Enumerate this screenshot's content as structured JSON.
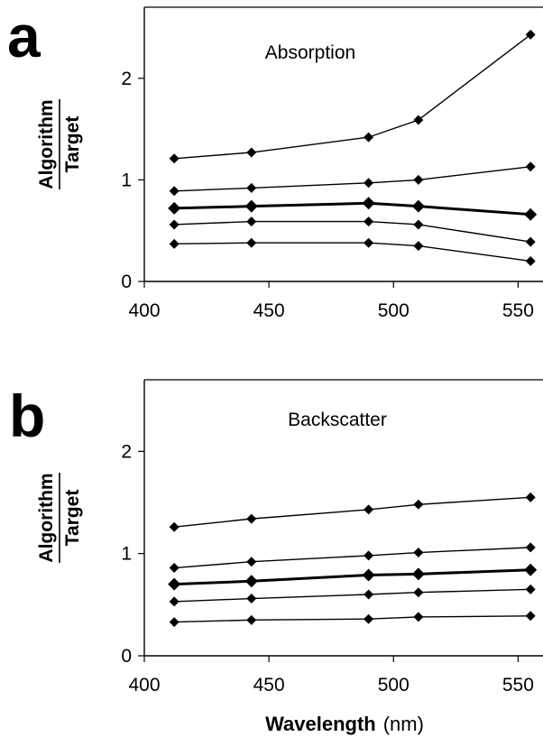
{
  "chart_data": [
    {
      "type": "line",
      "panel_label": "a",
      "annotation": "Absorption",
      "ylabel_numerator": "Algorithm",
      "ylabel_denominator": "Target",
      "xlabel": "",
      "xlabel_unit": "",
      "x": [
        412,
        443,
        490,
        510,
        555
      ],
      "xlim": [
        400,
        560
      ],
      "ylim": [
        0,
        2.7
      ],
      "xticks": [
        400,
        450,
        500,
        550
      ],
      "yticks": [
        0,
        1,
        2
      ],
      "grid": false,
      "legend": "none",
      "series": [
        {
          "values": [
            1.21,
            1.27,
            1.42,
            1.59,
            2.43
          ]
        },
        {
          "values": [
            0.89,
            0.92,
            0.97,
            1.0,
            1.13
          ]
        },
        {
          "values": [
            0.72,
            0.74,
            0.77,
            0.74,
            0.66
          ],
          "bold": true
        },
        {
          "values": [
            0.56,
            0.59,
            0.59,
            0.56,
            0.39
          ]
        },
        {
          "values": [
            0.37,
            0.38,
            0.38,
            0.35,
            0.2
          ]
        }
      ]
    },
    {
      "type": "line",
      "panel_label": "b",
      "annotation": "Backscatter",
      "ylabel_numerator": "Algorithm",
      "ylabel_denominator": "Target",
      "xlabel": "Wavelength",
      "xlabel_unit": "(nm)",
      "x": [
        412,
        443,
        490,
        510,
        555
      ],
      "xlim": [
        400,
        560
      ],
      "ylim": [
        0,
        2.7
      ],
      "xticks": [
        400,
        450,
        500,
        550
      ],
      "yticks": [
        0,
        1,
        2
      ],
      "grid": false,
      "legend": "none",
      "series": [
        {
          "values": [
            1.26,
            1.34,
            1.43,
            1.48,
            1.55
          ]
        },
        {
          "values": [
            0.86,
            0.92,
            0.98,
            1.01,
            1.06
          ]
        },
        {
          "values": [
            0.7,
            0.73,
            0.79,
            0.8,
            0.84
          ],
          "bold": true
        },
        {
          "values": [
            0.53,
            0.56,
            0.6,
            0.62,
            0.65
          ]
        },
        {
          "values": [
            0.33,
            0.35,
            0.36,
            0.38,
            0.39
          ]
        }
      ]
    }
  ]
}
